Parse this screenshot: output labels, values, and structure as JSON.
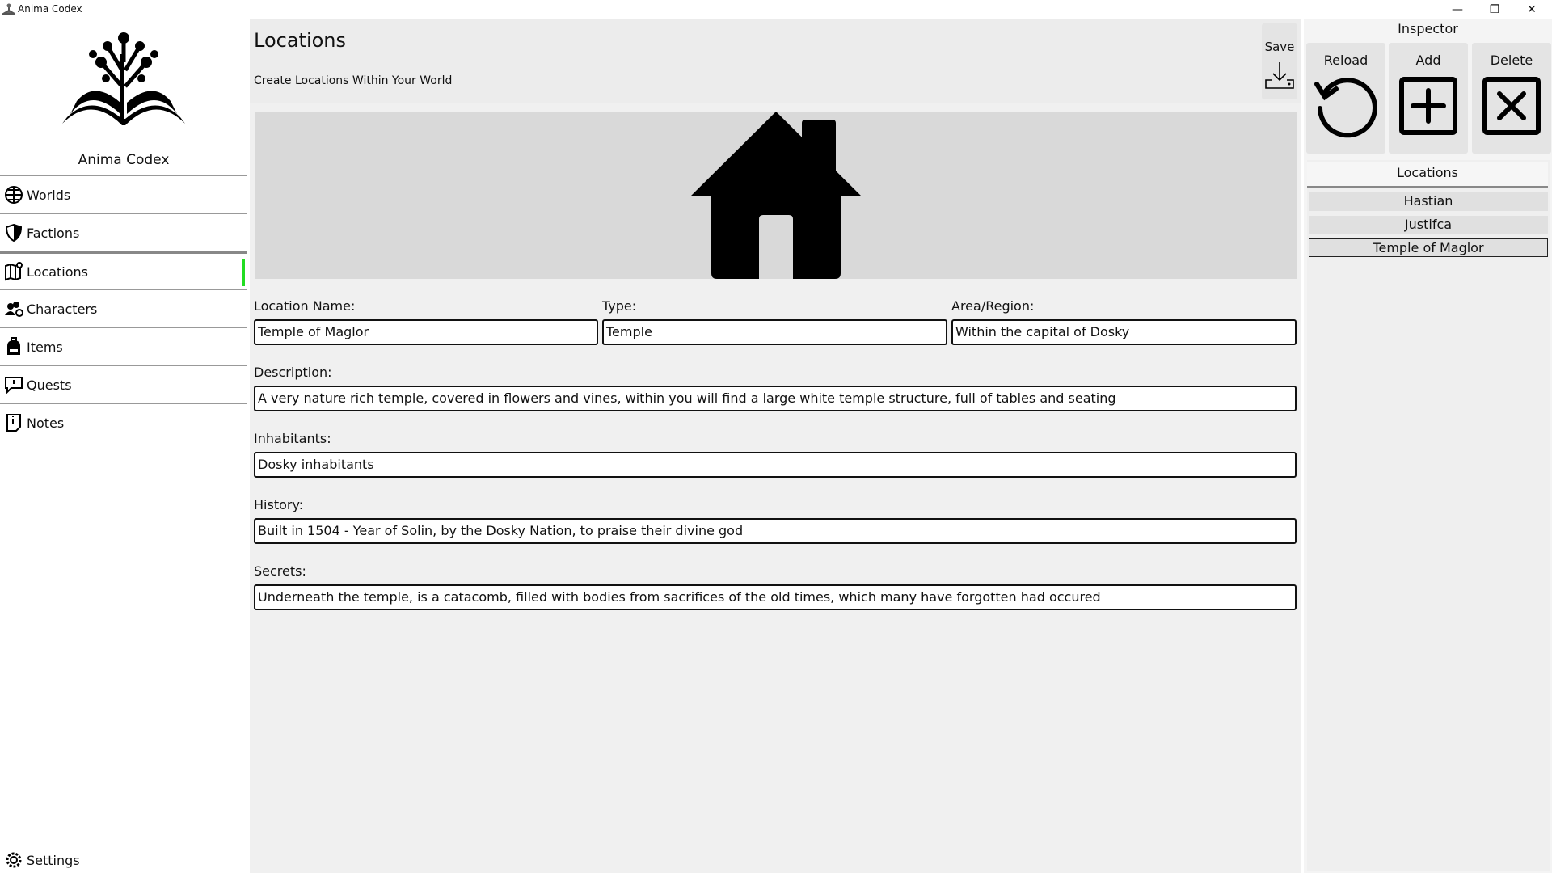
{
  "window": {
    "title": "Anima Codex",
    "minimize": "—",
    "restore": "❐",
    "close": "✕"
  },
  "sidebar": {
    "app_name": "Anima Codex",
    "items": [
      {
        "label": "Worlds",
        "icon": "globe-icon"
      },
      {
        "label": "Factions",
        "icon": "shield-icon"
      },
      {
        "label": "Locations",
        "icon": "map-pin-icon",
        "active": true
      },
      {
        "label": "Characters",
        "icon": "users-icon"
      },
      {
        "label": "Items",
        "icon": "backpack-icon"
      },
      {
        "label": "Quests",
        "icon": "speech-alert-icon"
      },
      {
        "label": "Notes",
        "icon": "note-icon"
      }
    ],
    "settings": "Settings",
    "accent": "#22dd22"
  },
  "header": {
    "title": "Locations",
    "subtitle": "Create Locations Within Your World",
    "save": "Save"
  },
  "form": {
    "name_label": "Location Name:",
    "name": "Temple of Maglor",
    "type_label": "Type:",
    "type": "Temple",
    "area_label": "Area/Region:",
    "area": "Within the capital of Dosky",
    "desc_label": "Description:",
    "desc": "A very nature rich temple, covered in flowers and vines, within you will find a large white temple structure, full of tables and seating",
    "inhab_label": "Inhabitants:",
    "inhab": "Dosky inhabitants",
    "hist_label": "History:",
    "hist": "Built in 1504 - Year of Solin, by the Dosky Nation, to praise their divine god",
    "sec_label": "Secrets:",
    "sec": "Underneath the temple, is a catacomb, filled with bodies from sacrifices of the old times, which many have forgotten had occured"
  },
  "inspector": {
    "title": "Inspector",
    "reload": "Reload",
    "add": "Add",
    "delete": "Delete",
    "list_title": "Locations",
    "items": [
      "Hastian",
      "Justifca",
      "Temple of Maglor"
    ],
    "selected": "Temple of Maglor"
  }
}
